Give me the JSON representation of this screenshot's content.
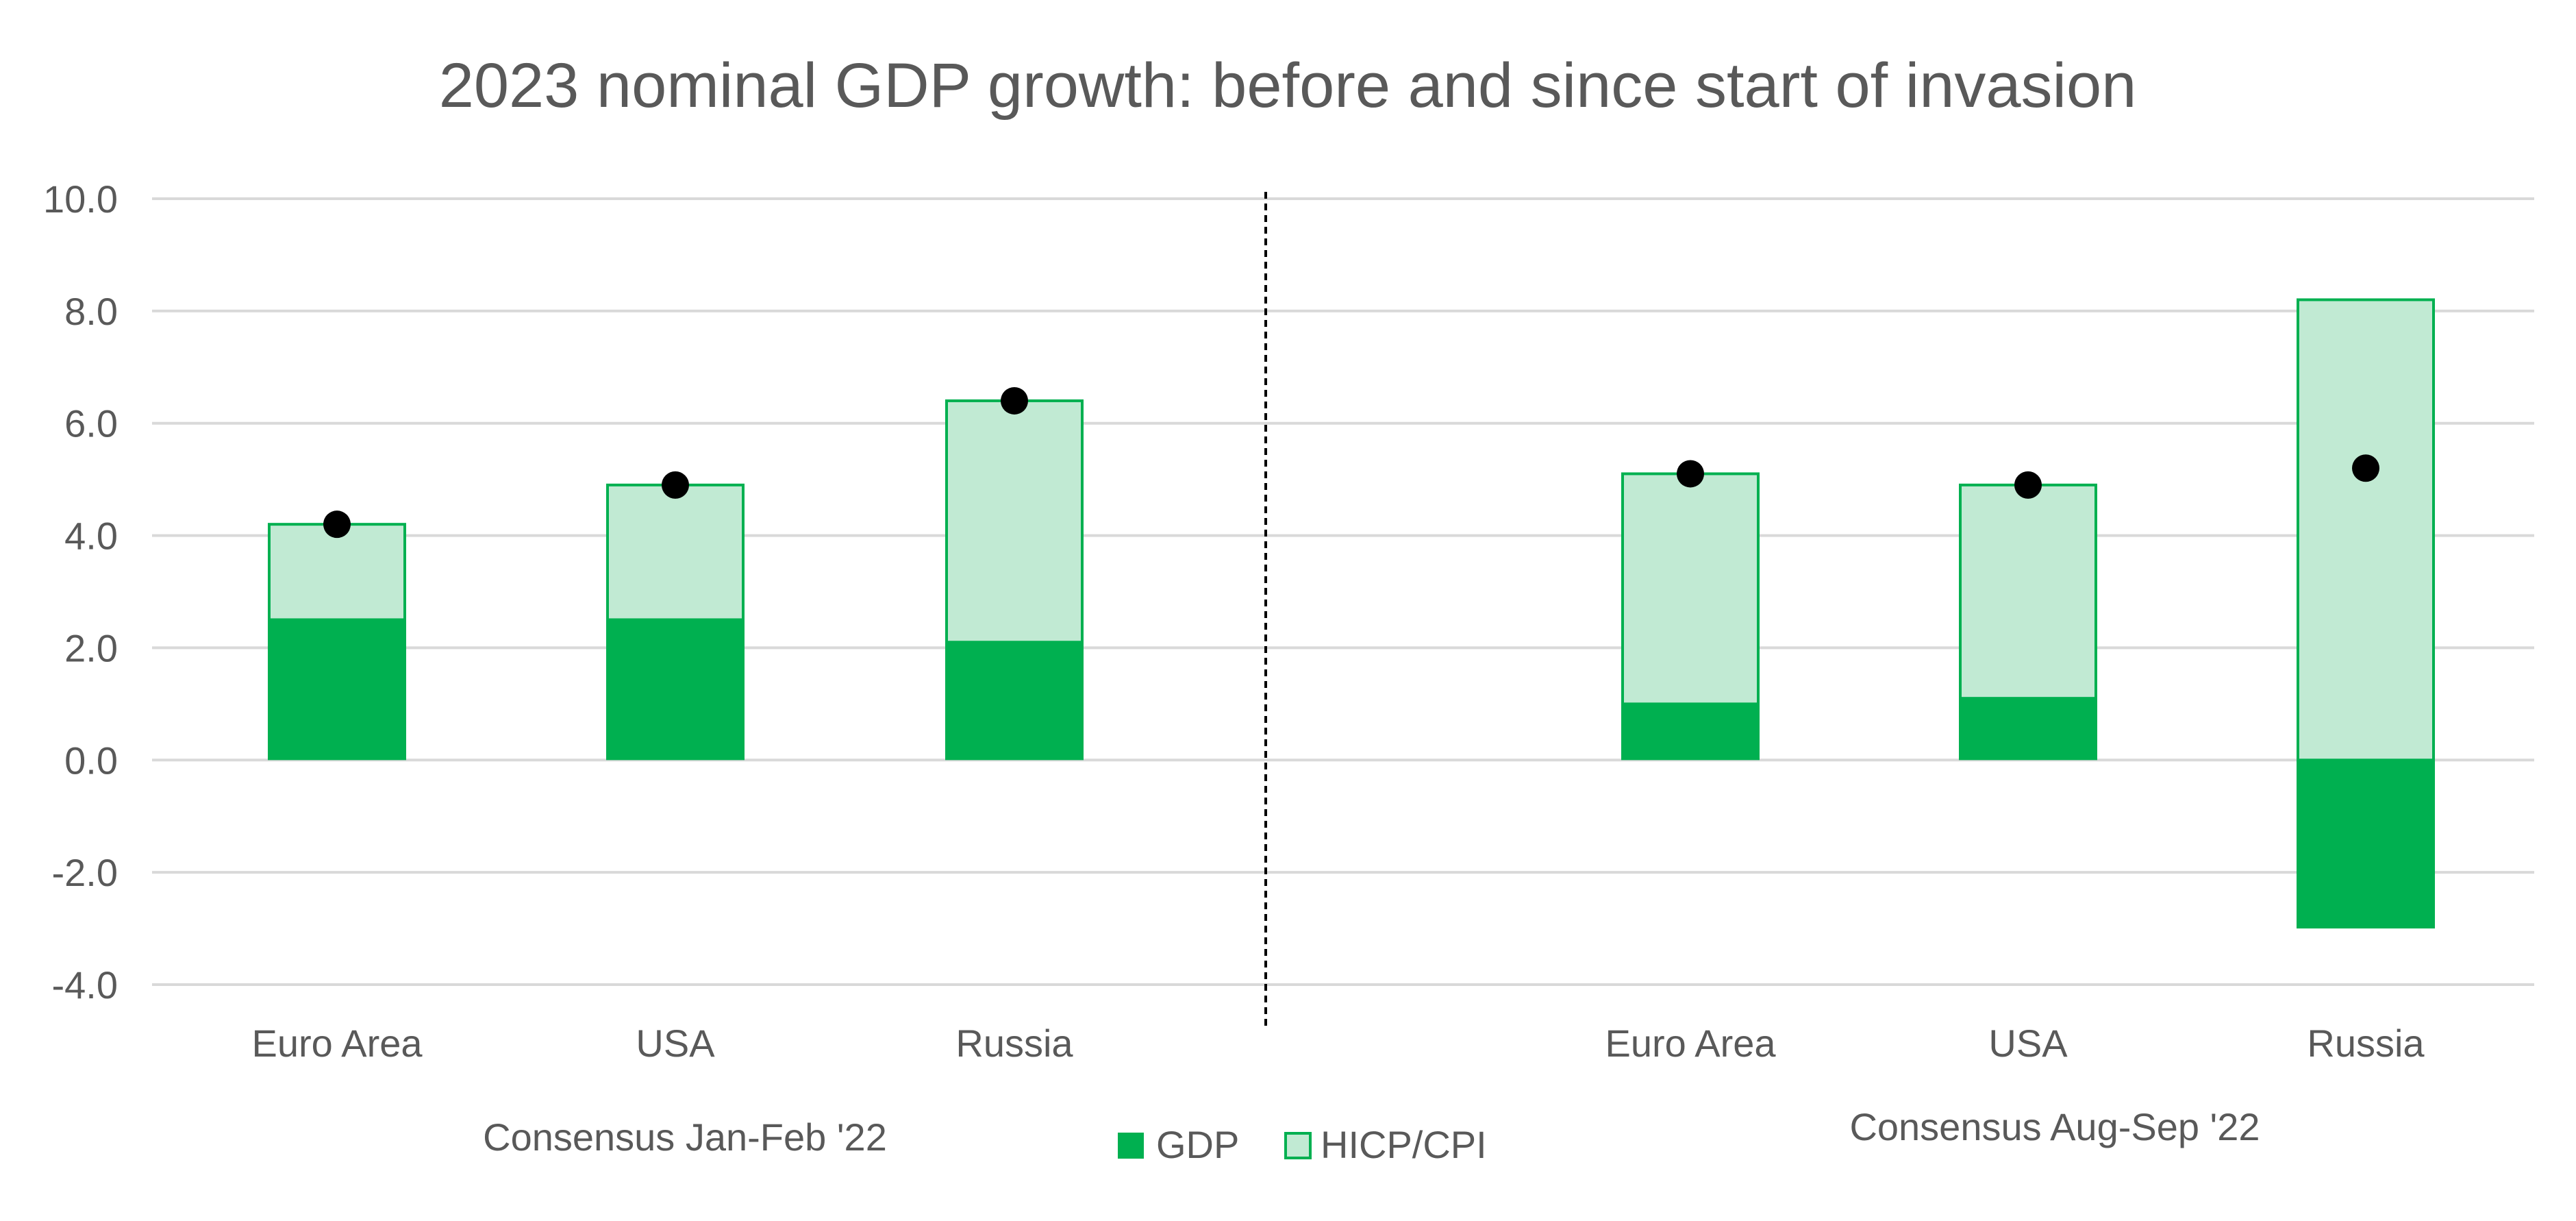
{
  "chart_data": {
    "type": "bar",
    "subtype": "stacked-bar-with-markers",
    "title": "2023 nominal GDP growth: before and since start of invasion",
    "xlabel": "",
    "ylabel": "",
    "ylim": [
      -4.0,
      10.0
    ],
    "ytick_step": 2.0,
    "yticks": [
      "10.0",
      "8.0",
      "6.0",
      "4.0",
      "2.0",
      "0.0",
      "-2.0",
      "-4.0"
    ],
    "grid": true,
    "groups": [
      {
        "label": "Consensus Jan-Feb '22",
        "categories": [
          "Euro Area",
          "USA",
          "Russia"
        ],
        "gdp": [
          2.5,
          2.5,
          2.1
        ],
        "hicp_cpi": [
          1.7,
          2.4,
          4.3
        ],
        "nominal_gdp": [
          4.2,
          4.9,
          6.4
        ]
      },
      {
        "label": "Consensus Aug-Sep '22",
        "categories": [
          "Euro Area",
          "USA",
          "Russia"
        ],
        "gdp": [
          1.0,
          1.1,
          -3.0
        ],
        "hicp_cpi": [
          4.1,
          3.8,
          8.2
        ],
        "nominal_gdp": [
          5.1,
          4.9,
          5.2
        ]
      }
    ],
    "legend": {
      "position": "bottom-center",
      "items": [
        {
          "key": "gdp",
          "label": "GDP"
        },
        {
          "key": "hicp_cpi",
          "label": "HICP/CPI"
        }
      ]
    },
    "colors": {
      "gdp": "#00b050",
      "hicp_cpi_fill": "#c1ead3",
      "hicp_cpi_border": "#00b050",
      "marker": "#000000",
      "divider": "#000000"
    }
  }
}
